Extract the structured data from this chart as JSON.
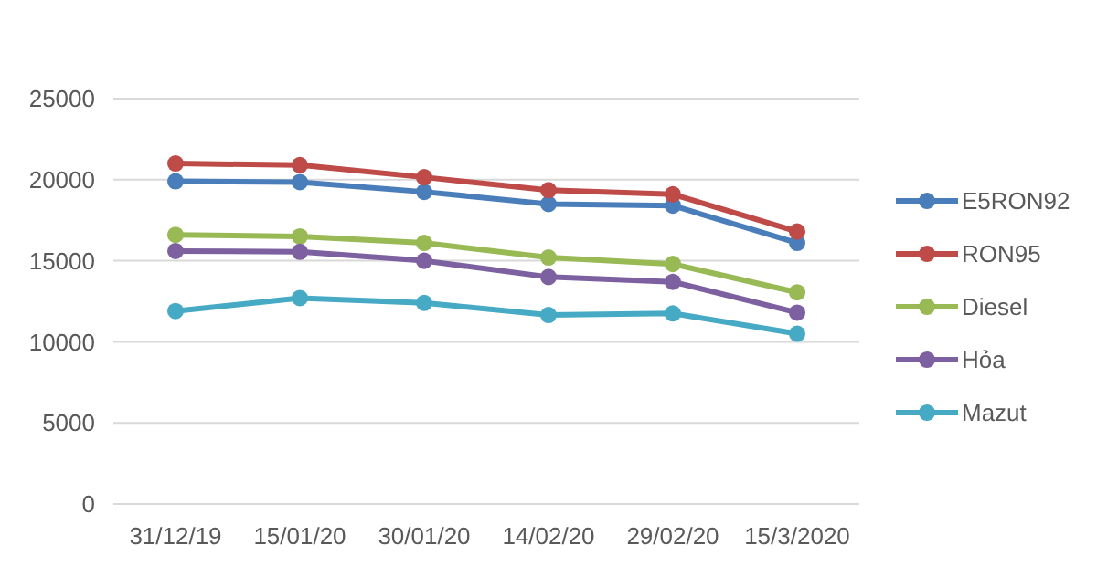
{
  "chart_data": {
    "type": "line",
    "categories": [
      "31/12/19",
      "15/01/20",
      "30/01/20",
      "14/02/20",
      "29/02/20",
      "15/3/2020"
    ],
    "series": [
      {
        "name": "E5RON92",
        "color": "#4a7ebb",
        "values": [
          19900,
          19850,
          19250,
          18500,
          18400,
          16100
        ]
      },
      {
        "name": "RON95",
        "color": "#be4b48",
        "values": [
          21000,
          20900,
          20150,
          19350,
          19100,
          16800
        ]
      },
      {
        "name": "Diesel",
        "color": "#98b954",
        "values": [
          16600,
          16500,
          16100,
          15200,
          14800,
          13050
        ]
      },
      {
        "name": "Hỏa",
        "color": "#7d60a0",
        "values": [
          15600,
          15550,
          15000,
          14000,
          13700,
          11800
        ]
      },
      {
        "name": "Mazut",
        "color": "#46aac5",
        "values": [
          11900,
          12700,
          12400,
          11650,
          11750,
          10500
        ]
      }
    ],
    "ylim": [
      0,
      25000
    ],
    "yticks": [
      0,
      5000,
      10000,
      15000,
      20000,
      25000
    ],
    "grid": "y",
    "legend": "right",
    "marker": "circle",
    "line_style": "solid"
  }
}
